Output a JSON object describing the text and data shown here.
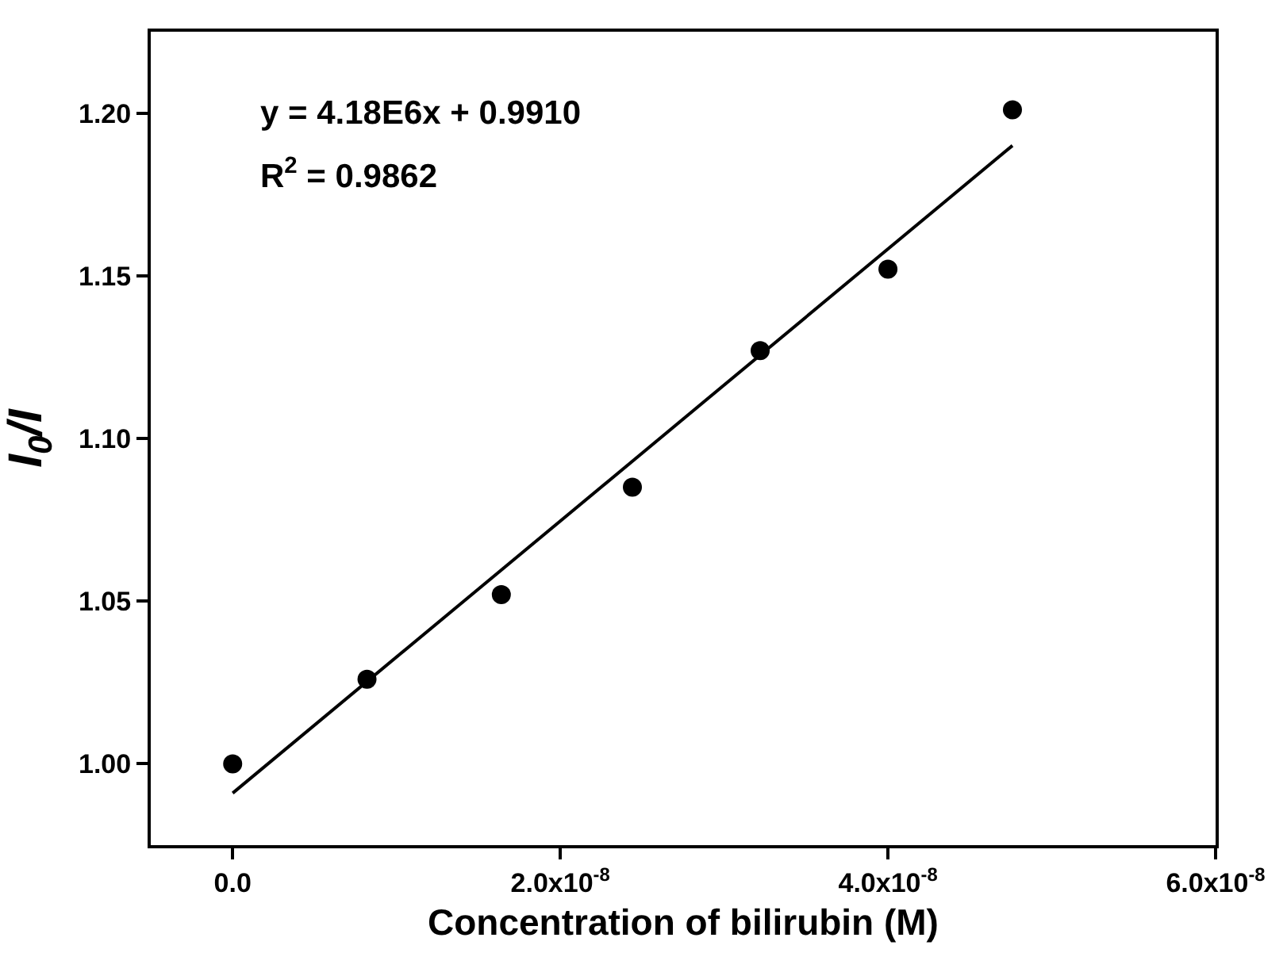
{
  "chart_data": {
    "type": "scatter",
    "xlabel": "Concentration of bilirubin (M)",
    "ylabel": "I$_{0}$/I",
    "x": [
      0,
      8.2e-09,
      1.64e-08,
      2.44e-08,
      3.22e-08,
      4e-08,
      4.76e-08
    ],
    "series": [
      {
        "color": "#000000",
        "marker": "circle",
        "values": [
          1.0,
          1.026,
          1.052,
          1.085,
          1.127,
          1.152,
          1.201
        ]
      },
      {
        "type": "line",
        "color": "#000000",
        "line_style": "solid",
        "marker": "none",
        "x": [
          0,
          4.76e-08
        ],
        "values": [
          0.991,
          1.19
        ]
      }
    ],
    "xlim": [
      -5e-09,
      6e-08
    ],
    "xticks": [
      {
        "value": 0,
        "label": "0.0"
      },
      {
        "value": 2e-08,
        "label": "2.0x10$^{-8}$"
      },
      {
        "value": 4e-08,
        "label": "4.0x10$^{-8}$"
      },
      {
        "value": 6e-08,
        "label": "6.0x10$^{-8}$"
      }
    ],
    "ylim": [
      0.975,
      1.225
    ],
    "yticks": [
      {
        "value": 1.0,
        "label": "1.00"
      },
      {
        "value": 1.05,
        "label": "1.05"
      },
      {
        "value": 1.1,
        "label": "1.10"
      },
      {
        "value": 1.15,
        "label": "1.15"
      },
      {
        "value": 1.2,
        "label": "1.20"
      }
    ],
    "annotations": [
      "y = 4.18E6x + 0.9910",
      "R$^{2}$ = 0.9862"
    ]
  }
}
